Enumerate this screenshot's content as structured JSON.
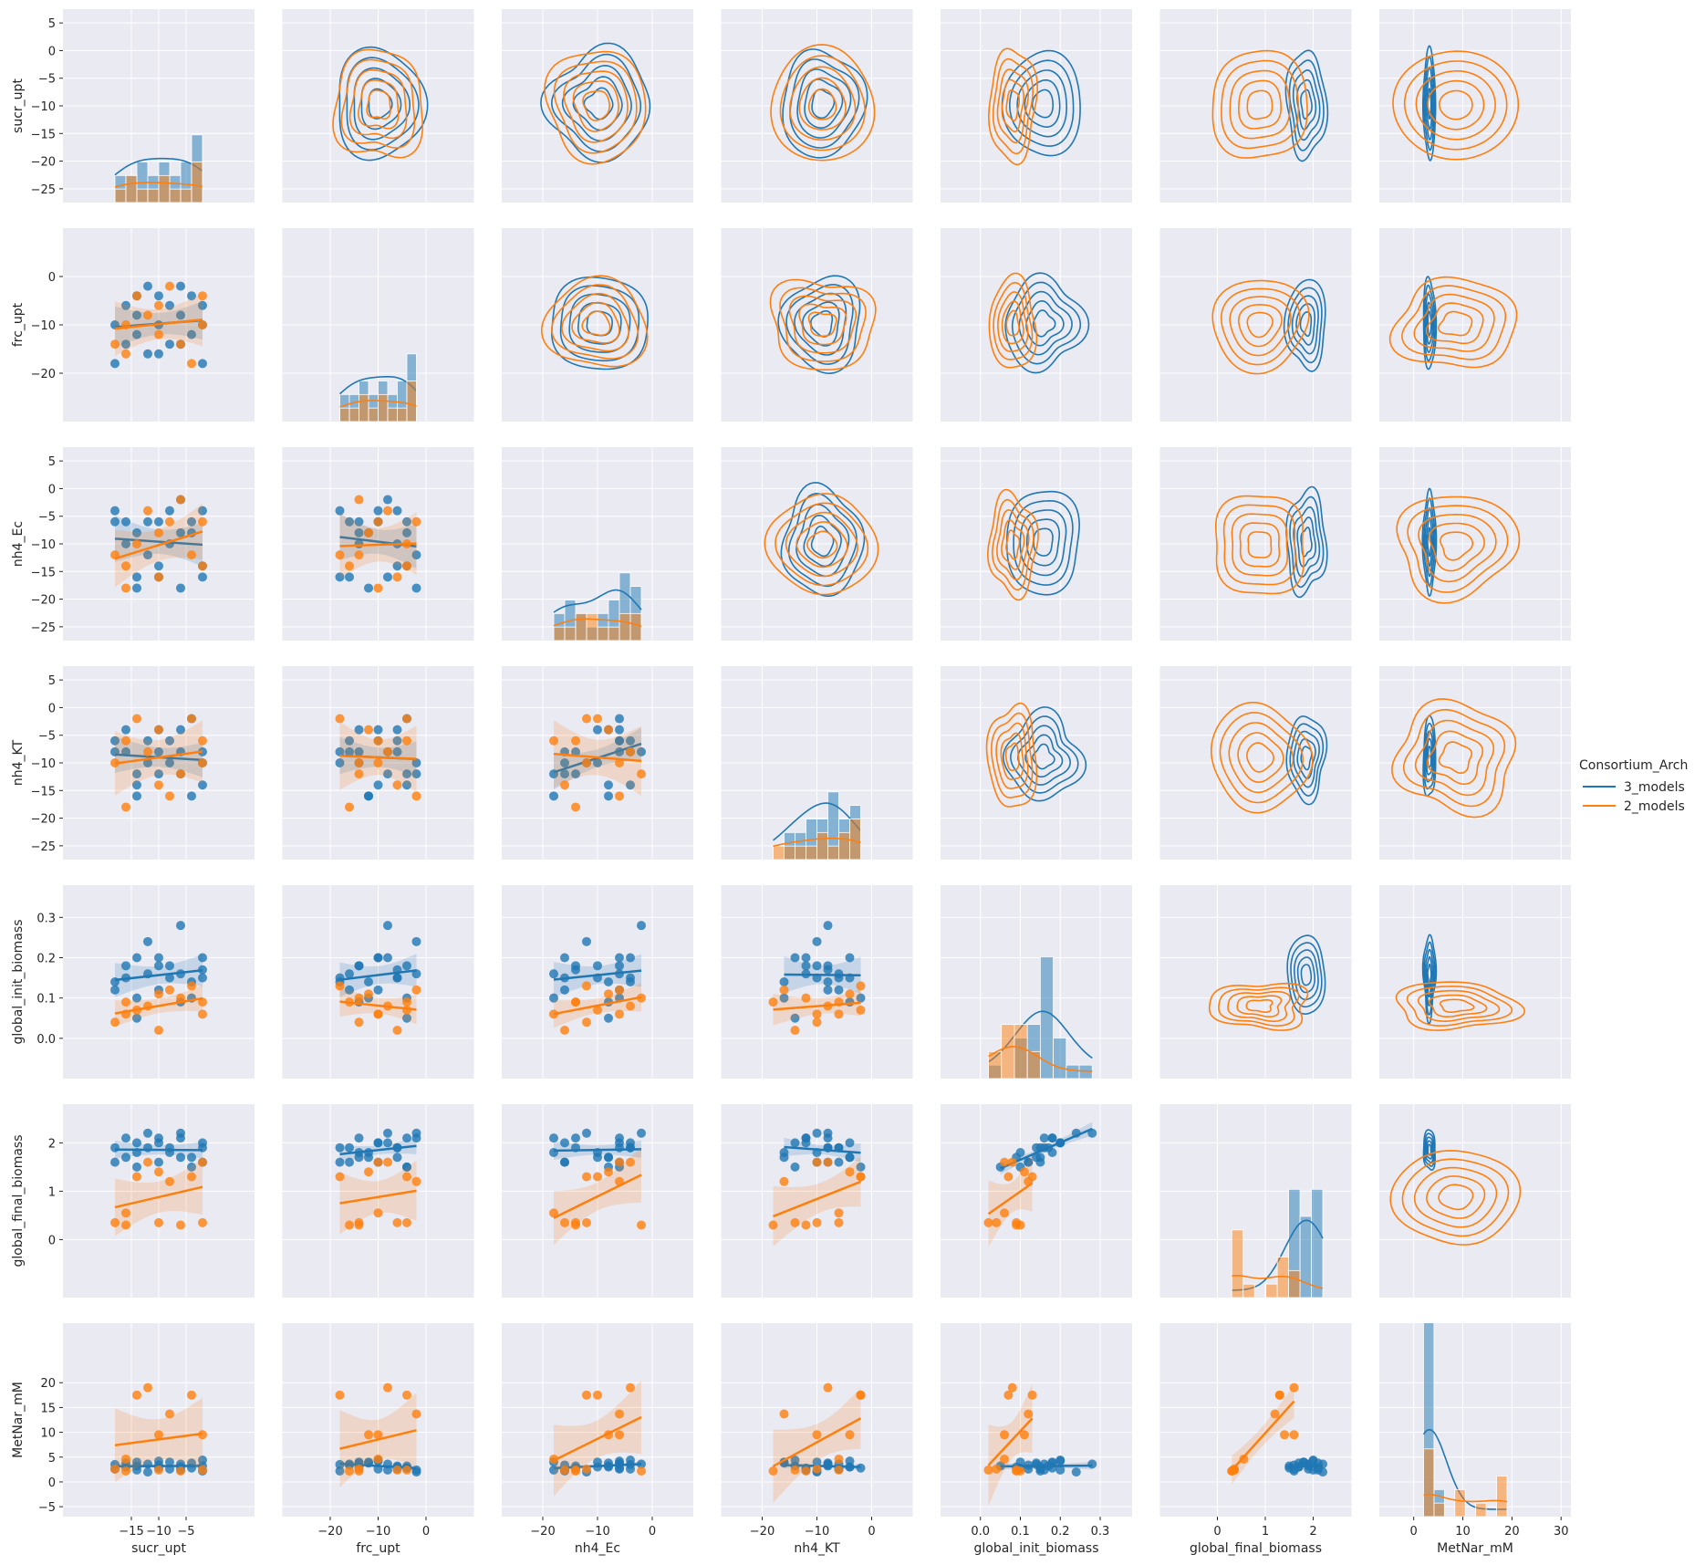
{
  "chart_data": {
    "type": "scatter",
    "title": "",
    "variables": [
      "sucr_upt",
      "frc_upt",
      "nh4_Ec",
      "nh4_KT",
      "global_init_biomass",
      "global_final_biomass",
      "MetNar_mM"
    ],
    "axis_labels": [
      "sucr_upt",
      "frc_upt",
      "nh4_Ec",
      "nh4_KT",
      "global_init_biomass",
      "global_final_biomass",
      "MetNar_mM"
    ],
    "ranges": [
      [
        -27.5,
        7.5
      ],
      [
        -30,
        10
      ],
      [
        -27.5,
        7.5
      ],
      [
        -27.5,
        7.5
      ],
      [
        -0.1,
        0.38
      ],
      [
        -1.2,
        2.8
      ],
      [
        -7,
        32
      ]
    ],
    "y_ticks": [
      [
        -25,
        -20,
        -15,
        -10,
        -5,
        0,
        5
      ],
      [
        -20,
        -10,
        0
      ],
      [
        -25,
        -20,
        -15,
        -10,
        -5,
        0,
        5
      ],
      [
        -25,
        -20,
        -15,
        -10,
        -5,
        0,
        5
      ],
      [
        0.0,
        0.1,
        0.2,
        0.3
      ],
      [
        0,
        1,
        2
      ],
      [
        -5,
        0,
        5,
        10,
        15,
        20
      ]
    ],
    "y_tick_labels": [
      [
        "−25",
        "−20",
        "−15",
        "−10",
        "−5",
        "0",
        "5"
      ],
      [
        "−20",
        "−10",
        "0"
      ],
      [
        "−25",
        "−20",
        "−15",
        "−10",
        "−5",
        "0",
        "5"
      ],
      [
        "−25",
        "−20",
        "−15",
        "−10",
        "−5",
        "0",
        "5"
      ],
      [
        "0.0",
        "0.1",
        "0.2",
        "0.3"
      ],
      [
        "0",
        "1",
        "2"
      ],
      [
        "−5",
        "0",
        "5",
        "10",
        "15",
        "20"
      ]
    ],
    "x_ticks": [
      [
        -15,
        -10,
        -5
      ],
      [
        -20,
        -10,
        0
      ],
      [
        -20,
        -10,
        0
      ],
      [
        -20,
        -10,
        0
      ],
      [
        0.0,
        0.1,
        0.2,
        0.3
      ],
      [
        0,
        1,
        2
      ],
      [
        -10,
        0,
        10,
        20,
        30
      ]
    ],
    "x_tick_labels": [
      [
        "−15",
        "−10",
        "−5"
      ],
      [
        "−20",
        "−10",
        "0"
      ],
      [
        "−20",
        "−10",
        "0"
      ],
      [
        "−20",
        "−10",
        "0"
      ],
      [
        "0.0",
        "0.1",
        "0.2",
        "0.3"
      ],
      [
        "0",
        "1",
        "2"
      ],
      [
        "−10",
        "0",
        "10",
        "20",
        "30"
      ]
    ],
    "lower_triangle": "scatter with linear regression and confidence band",
    "diagonal": "histogram with KDE",
    "upper_triangle": "bivariate KDE contours",
    "legend": {
      "title": "Consortium_Arch",
      "placement": "right-center",
      "entries": [
        "3_models",
        "2_models"
      ]
    },
    "series": [
      {
        "name": "3_models",
        "color": "#1f77b4",
        "points": [
          [
            -18,
            -18,
            -4,
            -8,
            0.14,
            1.9,
            3.5
          ],
          [
            -18,
            -10,
            -6,
            -6,
            0.12,
            1.6,
            2.6
          ],
          [
            -16,
            -6,
            -10,
            -4,
            0.15,
            1.7,
            3.0
          ],
          [
            -16,
            -14,
            -6,
            -8,
            0.18,
            2.1,
            3.8
          ],
          [
            -14,
            -8,
            -16,
            -12,
            0.2,
            2.0,
            2.4
          ],
          [
            -14,
            -4,
            -8,
            -14,
            0.05,
            1.5,
            3.2
          ],
          [
            -14,
            -12,
            -18,
            -16,
            0.1,
            1.8,
            4.0
          ],
          [
            -12,
            -2,
            -12,
            -10,
            0.24,
            2.2,
            2.0
          ],
          [
            -12,
            -16,
            -6,
            -6,
            0.16,
            1.9,
            3.6
          ],
          [
            -10,
            -4,
            -14,
            -12,
            0.18,
            2.1,
            2.8
          ],
          [
            -10,
            -10,
            -6,
            -4,
            0.2,
            2.0,
            4.2
          ],
          [
            -10,
            -16,
            -16,
            -8,
            0.12,
            1.6,
            3.4
          ],
          [
            -8,
            -6,
            -4,
            -6,
            0.15,
            1.9,
            2.6
          ],
          [
            -8,
            -14,
            -10,
            -10,
            0.18,
            1.8,
            4.0
          ],
          [
            -6,
            -8,
            -2,
            -8,
            0.28,
            2.2,
            3.6
          ],
          [
            -6,
            -2,
            -18,
            -12,
            0.16,
            2.1,
            2.4
          ],
          [
            -4,
            -12,
            -8,
            -16,
            0.14,
            1.7,
            3.8
          ],
          [
            -4,
            -4,
            -6,
            -2,
            0.1,
            1.5,
            2.8
          ],
          [
            -2,
            -10,
            -4,
            -14,
            0.2,
            2.0,
            4.4
          ],
          [
            -2,
            -6,
            -14,
            -8,
            0.17,
            1.9,
            3.2
          ],
          [
            -2,
            -18,
            -16,
            -10,
            0.15,
            1.6,
            2.2
          ],
          [
            -6,
            -14,
            -8,
            -4,
            0.09,
            1.7,
            3.0
          ]
        ]
      },
      {
        "name": "2_models",
        "color": "#ff7f0e",
        "points": [
          [
            -18,
            -14,
            -12,
            -10,
            0.04,
            0.35,
            2.6
          ],
          [
            -16,
            -10,
            -18,
            -6,
            0.06,
            0.55,
            4.6
          ],
          [
            -16,
            -16,
            -14,
            -18,
            0.09,
            0.3,
            2.2
          ],
          [
            -14,
            -4,
            -10,
            -2,
            0.07,
            1.3,
            17.5
          ],
          [
            -12,
            -8,
            -4,
            -8,
            0.08,
            1.6,
            19.0
          ],
          [
            -10,
            -6,
            -16,
            -14,
            0.02,
            0.35,
            2.4
          ],
          [
            -10,
            -12,
            -8,
            -4,
            0.11,
            1.4,
            9.5
          ],
          [
            -8,
            -2,
            -6,
            -16,
            0.12,
            1.2,
            13.7
          ],
          [
            -6,
            -14,
            -2,
            -12,
            0.1,
            0.3,
            2.2
          ],
          [
            -4,
            -18,
            -12,
            -2,
            0.13,
            1.3,
            17.5
          ],
          [
            -2,
            -4,
            -14,
            -6,
            0.09,
            0.35,
            2.4
          ],
          [
            -2,
            -10,
            -6,
            -10,
            0.06,
            1.6,
            9.5
          ]
        ]
      }
    ]
  }
}
